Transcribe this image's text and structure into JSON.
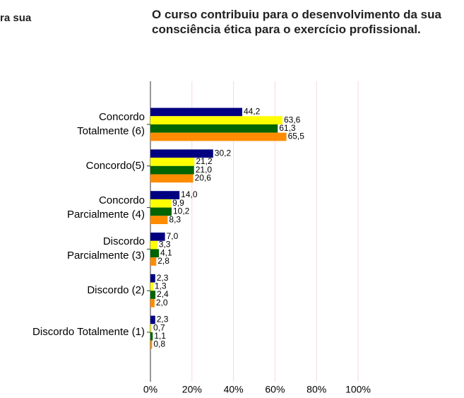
{
  "fragment": "ra sua",
  "chart_data": {
    "type": "hbar",
    "title": "O curso contribuiu para o desenvolvimento da sua consciência ética para o exercício profissional.",
    "categories": [
      "Concordo\nTotalmente (6)",
      "Concordo(5)",
      "Concordo\nParcialmente (4)",
      "Discordo\nParcialmente (3)",
      "Discordo (2)",
      "Discordo Totalmente (1)"
    ],
    "series": [
      {
        "color": "#000080",
        "values": [
          44.2,
          30.2,
          14.0,
          7.0,
          2.3,
          2.3
        ],
        "value_labels": [
          "44,2",
          "30,2",
          "14,0",
          "7,0",
          "2,3",
          "2,3"
        ]
      },
      {
        "color": "#ffff00",
        "values": [
          63.6,
          21.2,
          9.9,
          3.3,
          1.3,
          0.7
        ],
        "value_labels": [
          "63,6",
          "21,2",
          "9,9",
          "3,3",
          "1,3",
          "0,7"
        ]
      },
      {
        "color": "#006400",
        "values": [
          61.3,
          21.0,
          10.2,
          4.1,
          2.4,
          1.1
        ],
        "value_labels": [
          "61,3",
          "21,0",
          "10,2",
          "4,1",
          "2,4",
          "1,1"
        ]
      },
      {
        "color": "#ff8c00",
        "values": [
          65.5,
          20.6,
          8.3,
          2.8,
          2.0,
          0.8
        ],
        "value_labels": [
          "65,5",
          "20,6",
          "8,3",
          "2,8",
          "2,0",
          "0,8"
        ]
      }
    ],
    "xlim": [
      0,
      100
    ],
    "xticks": [
      {
        "value": 0,
        "label": "0%"
      },
      {
        "value": 20,
        "label": "20%"
      },
      {
        "value": 40,
        "label": "40%"
      },
      {
        "value": 60,
        "label": "60%"
      },
      {
        "value": 80,
        "label": "80%"
      },
      {
        "value": 100,
        "label": "100%"
      }
    ],
    "grid": true
  }
}
